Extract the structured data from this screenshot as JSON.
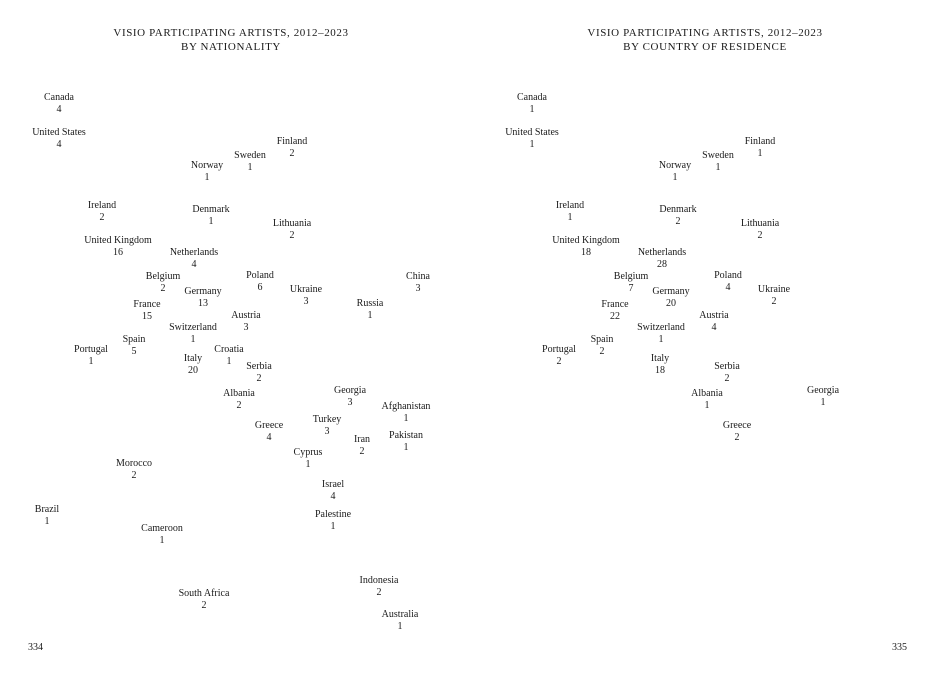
{
  "pages": [
    {
      "title": [
        "VISIO PARTICIPATING ARTISTS, 2012–2023",
        "BY NATIONALITY"
      ],
      "entries": [
        {
          "country": "Canada",
          "count": 4
        },
        {
          "country": "United States",
          "count": 4
        },
        {
          "country": "Finland",
          "count": 2
        },
        {
          "country": "Sweden",
          "count": 1
        },
        {
          "country": "Norway",
          "count": 1
        },
        {
          "country": "Ireland",
          "count": 2
        },
        {
          "country": "Denmark",
          "count": 1
        },
        {
          "country": "Lithuania",
          "count": 2
        },
        {
          "country": "United Kingdom",
          "count": 16
        },
        {
          "country": "Netherlands",
          "count": 4
        },
        {
          "country": "Belgium",
          "count": 2
        },
        {
          "country": "Poland",
          "count": 6
        },
        {
          "country": "China",
          "count": 3
        },
        {
          "country": "Ukraine",
          "count": 3
        },
        {
          "country": "Germany",
          "count": 13
        },
        {
          "country": "France",
          "count": 15
        },
        {
          "country": "Russia",
          "count": 1
        },
        {
          "country": "Austria",
          "count": 3
        },
        {
          "country": "Switzerland",
          "count": 1
        },
        {
          "country": "Spain",
          "count": 5
        },
        {
          "country": "Portugal",
          "count": 1
        },
        {
          "country": "Croatia",
          "count": 1
        },
        {
          "country": "Italy",
          "count": 20
        },
        {
          "country": "Serbia",
          "count": 2
        },
        {
          "country": "Georgia",
          "count": 3
        },
        {
          "country": "Albania",
          "count": 2
        },
        {
          "country": "Afghanistan",
          "count": 1
        },
        {
          "country": "Turkey",
          "count": 3
        },
        {
          "country": "Greece",
          "count": 4
        },
        {
          "country": "Iran",
          "count": 2
        },
        {
          "country": "Pakistan",
          "count": 1
        },
        {
          "country": "Cyprus",
          "count": 1
        },
        {
          "country": "Morocco",
          "count": 2
        },
        {
          "country": "Israel",
          "count": 4
        },
        {
          "country": "Brazil",
          "count": 1
        },
        {
          "country": "Palestine",
          "count": 1
        },
        {
          "country": "Cameroon",
          "count": 1
        },
        {
          "country": "Indonesia",
          "count": 2
        },
        {
          "country": "South Africa",
          "count": 2
        },
        {
          "country": "Australia",
          "count": 1
        }
      ],
      "page_number": 334
    },
    {
      "title": [
        "VISIO PARTICIPATING ARTISTS, 2012–2023",
        "BY COUNTRY OF RESIDENCE"
      ],
      "entries": [
        {
          "country": "Canada",
          "count": 1
        },
        {
          "country": "United States",
          "count": 1
        },
        {
          "country": "Finland",
          "count": 1
        },
        {
          "country": "Sweden",
          "count": 1
        },
        {
          "country": "Norway",
          "count": 1
        },
        {
          "country": "Ireland",
          "count": 1
        },
        {
          "country": "Denmark",
          "count": 2
        },
        {
          "country": "Lithuania",
          "count": 2
        },
        {
          "country": "United Kingdom",
          "count": 18
        },
        {
          "country": "Netherlands",
          "count": 28
        },
        {
          "country": "Belgium",
          "count": 7
        },
        {
          "country": "Poland",
          "count": 4
        },
        {
          "country": "Ukraine",
          "count": 2
        },
        {
          "country": "Germany",
          "count": 20
        },
        {
          "country": "France",
          "count": 22
        },
        {
          "country": "Austria",
          "count": 4
        },
        {
          "country": "Switzerland",
          "count": 1
        },
        {
          "country": "Spain",
          "count": 2
        },
        {
          "country": "Portugal",
          "count": 2
        },
        {
          "country": "Italy",
          "count": 18
        },
        {
          "country": "Serbia",
          "count": 2
        },
        {
          "country": "Georgia",
          "count": 1
        },
        {
          "country": "Albania",
          "count": 1
        },
        {
          "country": "Greece",
          "count": 2
        }
      ],
      "page_number": 335
    }
  ]
}
